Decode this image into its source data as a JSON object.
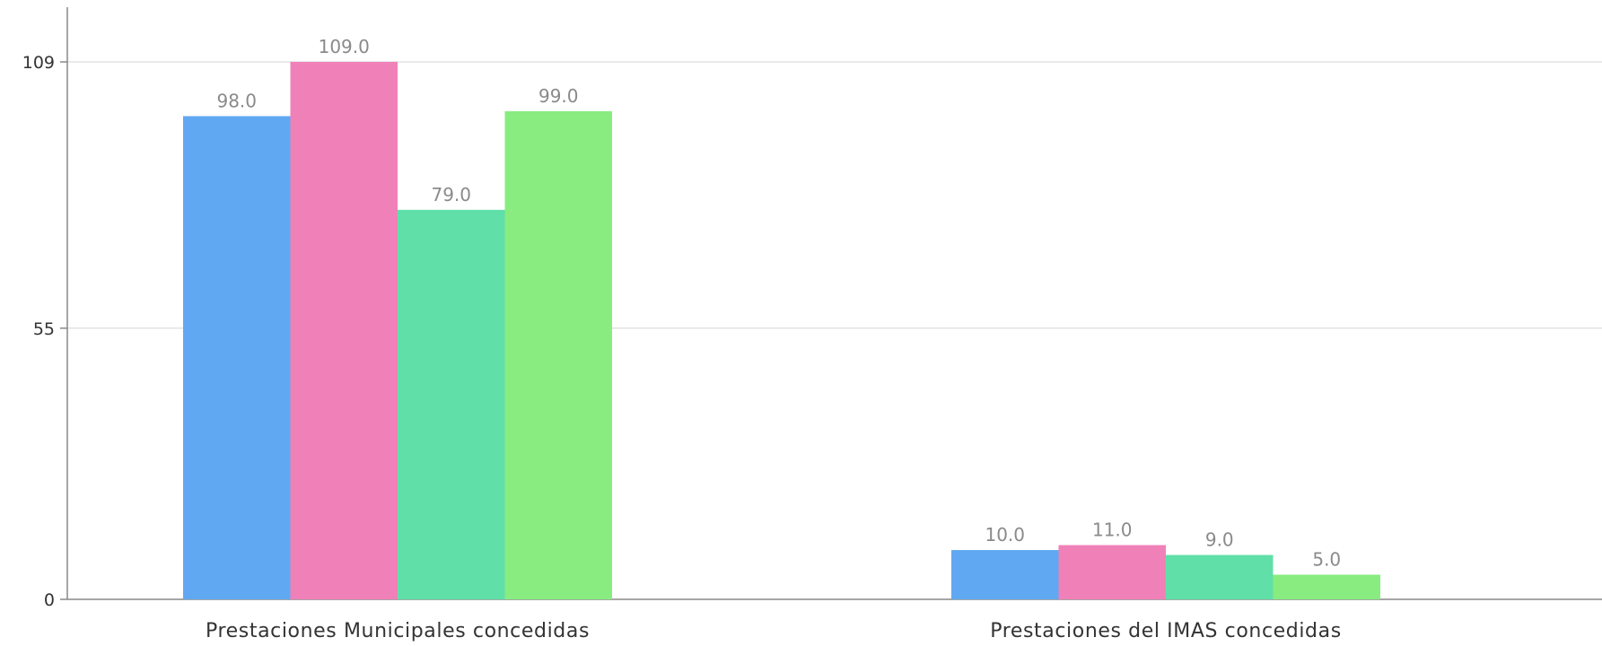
{
  "chart_data": {
    "type": "bar",
    "categories": [
      "Prestaciones Municipales concedidas",
      "Prestaciones del IMAS concedidas"
    ],
    "series": [
      {
        "color": "#60a8f2",
        "values": [
          98.0,
          10.0
        ]
      },
      {
        "color": "#f080b8",
        "values": [
          109.0,
          11.0
        ]
      },
      {
        "color": "#60e0a8",
        "values": [
          79.0,
          9.0
        ]
      },
      {
        "color": "#88ec80",
        "values": [
          99.0,
          5.0
        ]
      }
    ],
    "data_labels": [
      [
        "98.0",
        "10.0"
      ],
      [
        "109.0",
        "11.0"
      ],
      [
        "79.0",
        "9.0"
      ],
      [
        "99.0",
        "5.0"
      ]
    ],
    "y_ticks": [
      0,
      55,
      109
    ],
    "y_tick_labels": [
      "0",
      "55",
      "109"
    ],
    "ylim": [
      0,
      109
    ],
    "grid": true,
    "legend": "none"
  }
}
